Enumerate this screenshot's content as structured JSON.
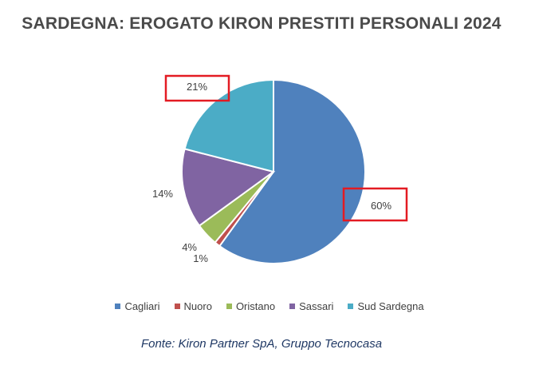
{
  "chart_data": {
    "type": "pie",
    "title": "SARDEGNA: EROGATO KIRON PRESTITI PERSONALI 2024",
    "categories": [
      "Cagliari",
      "Nuoro",
      "Oristano",
      "Sassari",
      "Sud Sardegna"
    ],
    "values": [
      60,
      1,
      4,
      14,
      21
    ],
    "value_labels": [
      "60%",
      "1%",
      "4%",
      "14%",
      "21%"
    ],
    "colors": [
      "#4f81bd",
      "#c0504d",
      "#9bbb59",
      "#8064a2",
      "#4bacc6"
    ],
    "highlighted_labels": [
      "60%",
      "21%"
    ],
    "highlight_color": "#e31b23",
    "legend_position": "bottom"
  },
  "source": "Fonte: Kiron Partner SpA, Gruppo Tecnocasa"
}
